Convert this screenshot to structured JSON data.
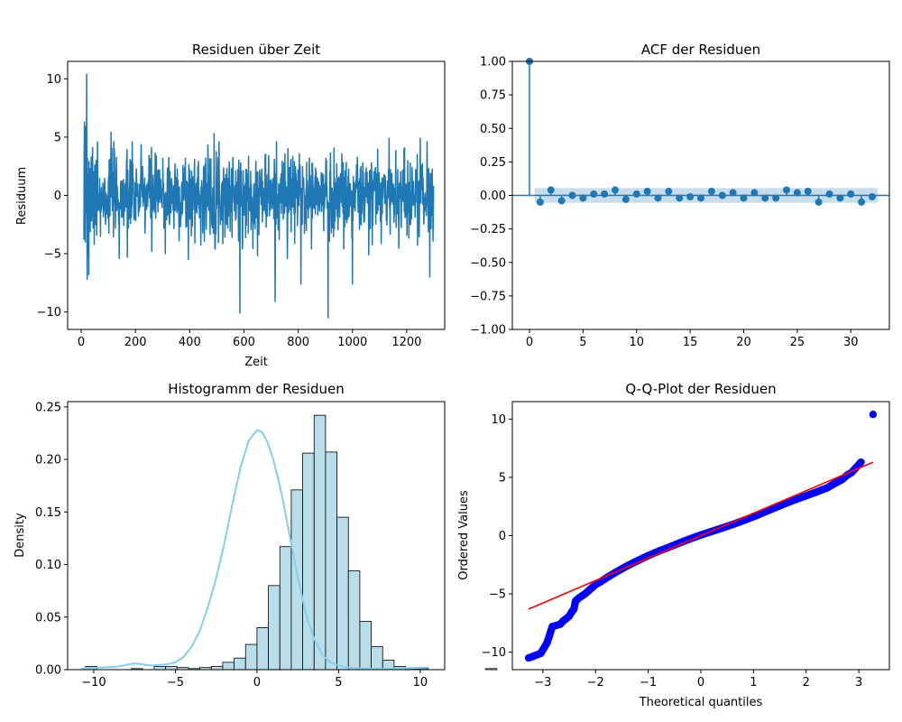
{
  "chart_data": [
    {
      "type": "line",
      "title": "Residuen über Zeit",
      "xlabel": "Zeit",
      "ylabel": "Residuum",
      "xlim": [
        -50,
        1340
      ],
      "ylim": [
        -11.5,
        11.5
      ],
      "xticks": [
        0,
        200,
        400,
        600,
        800,
        1000,
        1200
      ],
      "yticks": [
        -10,
        -5,
        0,
        5,
        10
      ],
      "color": "#1f77b4",
      "n_points": 1290,
      "x_start": 10,
      "series": [
        {
          "values": [
            -3.8,
            3.7,
            6.3,
            -2.1,
            1.1,
            -4.0,
            5.9,
            -1.5,
            2.4,
            -0.6,
            10.4,
            -1.8,
            -7.2,
            3.2,
            -2.6,
            0.5,
            -5.1,
            1.8,
            -6.8,
            2.9,
            -1.2,
            0.7,
            2.3,
            -3.1,
            0.4,
            1.6,
            -0.9,
            3.3,
            -2.2,
            0.8,
            -1.7,
            1.2,
            4.1,
            -0.5,
            -2.8,
            2.0,
            -0.3,
            1.5,
            -4.2,
            0.6,
            2.6,
            -1.1,
            0.2,
            -2.5,
            1.9,
            3.0,
            -0.8,
            -3.4,
            1.3,
            0.1
          ],
          "spikes": [
            {
              "x": 110,
              "y": 5.4
            },
            {
              "x": 140,
              "y": -5.4
            },
            {
              "x": 170,
              "y": -5.3
            },
            {
              "x": 260,
              "y": -4.8
            },
            {
              "x": 310,
              "y": -5.0
            },
            {
              "x": 395,
              "y": -5.5
            },
            {
              "x": 490,
              "y": 5.3
            },
            {
              "x": 585,
              "y": -10.1
            },
            {
              "x": 650,
              "y": -5.2
            },
            {
              "x": 715,
              "y": -9.1
            },
            {
              "x": 760,
              "y": -5.4
            },
            {
              "x": 810,
              "y": -7.6
            },
            {
              "x": 910,
              "y": -10.5
            },
            {
              "x": 1000,
              "y": -7.6
            },
            {
              "x": 1060,
              "y": -5.1
            },
            {
              "x": 1135,
              "y": 4.9
            },
            {
              "x": 1250,
              "y": 4.9
            },
            {
              "x": 1285,
              "y": -7.0
            }
          ]
        }
      ]
    },
    {
      "type": "stem",
      "title": "ACF der Residuen",
      "xlim": [
        -1.6,
        33.6
      ],
      "ylim": [
        -1.0,
        1.0
      ],
      "xticks": [
        0,
        5,
        10,
        15,
        20,
        25,
        30
      ],
      "yticks": [
        -1.0,
        -0.75,
        -0.5,
        -0.25,
        0.0,
        0.25,
        0.5,
        0.75,
        1.0
      ],
      "ytick_labels": [
        "−1.00",
        "−0.75",
        "−0.50",
        "−0.25",
        "0.00",
        "0.25",
        "0.50",
        "0.75",
        "1.00"
      ],
      "confidence_band": 0.055,
      "color": "#1f77b4",
      "lags": [
        0,
        1,
        2,
        3,
        4,
        5,
        6,
        7,
        8,
        9,
        10,
        11,
        12,
        13,
        14,
        15,
        16,
        17,
        18,
        19,
        20,
        21,
        22,
        23,
        24,
        25,
        26,
        27,
        28,
        29,
        30,
        31,
        32
      ],
      "values": [
        1.0,
        -0.05,
        0.04,
        -0.04,
        0.0,
        -0.02,
        0.01,
        0.01,
        0.04,
        -0.03,
        0.01,
        0.03,
        -0.02,
        0.03,
        -0.02,
        -0.01,
        -0.02,
        0.03,
        0.0,
        0.02,
        -0.02,
        0.02,
        -0.02,
        -0.02,
        0.04,
        0.02,
        0.03,
        -0.05,
        0.01,
        -0.02,
        0.01,
        -0.05,
        -0.01
      ]
    },
    {
      "type": "bar",
      "title": "Histogramm der Residuen",
      "xlabel": "",
      "ylabel": "Density",
      "xlim": [
        -11.6,
        11.5
      ],
      "ylim": [
        0,
        0.255
      ],
      "xticks": [
        -10,
        -5,
        0,
        5,
        10
      ],
      "yticks": [
        0.0,
        0.05,
        0.1,
        0.15,
        0.2,
        0.25
      ],
      "ytick_labels": [
        "0.00",
        "0.05",
        "0.10",
        "0.15",
        "0.20",
        "0.25"
      ],
      "bar_color": "#add8e6",
      "kde_color": "#87ceeb",
      "bin_start": -10.5,
      "bin_width": 0.7,
      "densities": [
        0.003,
        0.0,
        0.0,
        0.0,
        0.001,
        0.0,
        0.003,
        0.003,
        0.002,
        0.001,
        0.002,
        0.003,
        0.007,
        0.011,
        0.024,
        0.04,
        0.08,
        0.117,
        0.171,
        0.206,
        0.242,
        0.207,
        0.145,
        0.094,
        0.046,
        0.022,
        0.009,
        0.003,
        0.001,
        0.001,
        0.0,
        0.0,
        0.0,
        0.0,
        0.0,
        0.001
      ],
      "kde": {
        "x": [
          -10.8,
          -9.5,
          -8.5,
          -7.5,
          -6.5,
          -5.5,
          -5.0,
          -4.5,
          -4.0,
          -3.5,
          -3.0,
          -2.5,
          -2.0,
          -1.5,
          -1.0,
          -0.5,
          0.0,
          0.3,
          0.6,
          1.0,
          1.5,
          2.0,
          2.5,
          3.0,
          3.5,
          4.0,
          4.5,
          5.0,
          5.5,
          6.5,
          8.0,
          10.5
        ],
        "y": [
          0.001,
          0.002,
          0.003,
          0.006,
          0.004,
          0.005,
          0.007,
          0.012,
          0.022,
          0.037,
          0.06,
          0.087,
          0.12,
          0.158,
          0.193,
          0.218,
          0.228,
          0.226,
          0.218,
          0.2,
          0.168,
          0.128,
          0.088,
          0.053,
          0.029,
          0.014,
          0.007,
          0.004,
          0.002,
          0.001,
          0.001,
          0.002
        ]
      }
    },
    {
      "type": "scatter",
      "title": "Q-Q-Plot der Residuen",
      "xlabel": "Theoretical quantiles",
      "ylabel": "Ordered Values",
      "xlim": [
        -3.58,
        3.58
      ],
      "ylim": [
        -11.5,
        11.5
      ],
      "xticks": [
        -3,
        -2,
        -1,
        0,
        1,
        2,
        3
      ],
      "xtick_labels": [
        "−3",
        "−2",
        "−1",
        "0",
        "1",
        "2",
        "3"
      ],
      "yticks": [
        -10,
        -5,
        0,
        5,
        10
      ],
      "ytick_labels": [
        "−10",
        "−5",
        "0",
        "5",
        "10"
      ],
      "point_color": "#0000ff",
      "line_color": "#ff0000",
      "fit_line": {
        "x": [
          -3.27,
          3.27
        ],
        "y": [
          -6.3,
          6.3
        ]
      },
      "points": [
        [
          -3.27,
          -10.5
        ],
        [
          -3.04,
          -10.1
        ],
        [
          -2.92,
          -9.2
        ],
        [
          -2.82,
          -7.8
        ],
        [
          -2.74,
          -7.7
        ],
        [
          -2.67,
          -7.6
        ],
        [
          -2.61,
          -7.3
        ],
        [
          -2.55,
          -7.1
        ],
        [
          -2.5,
          -6.9
        ],
        [
          -2.46,
          -6.6
        ],
        [
          -2.41,
          -6.3
        ],
        [
          -2.38,
          -5.6
        ],
        [
          -2.3,
          -5.3
        ],
        [
          -2.2,
          -5.0
        ],
        [
          -2.1,
          -4.6
        ],
        [
          -2.0,
          -4.2
        ],
        [
          -1.9,
          -3.95
        ],
        [
          -1.8,
          -3.65
        ],
        [
          -1.6,
          -3.1
        ],
        [
          -1.4,
          -2.6
        ],
        [
          -1.2,
          -2.15
        ],
        [
          -1.0,
          -1.72
        ],
        [
          -0.8,
          -1.33
        ],
        [
          -0.6,
          -0.98
        ],
        [
          -0.4,
          -0.62
        ],
        [
          -0.2,
          -0.27
        ],
        [
          0.0,
          0.05
        ],
        [
          0.2,
          0.35
        ],
        [
          0.4,
          0.64
        ],
        [
          0.6,
          0.95
        ],
        [
          0.8,
          1.28
        ],
        [
          1.0,
          1.62
        ],
        [
          1.2,
          2.0
        ],
        [
          1.4,
          2.38
        ],
        [
          1.6,
          2.75
        ],
        [
          1.8,
          3.1
        ],
        [
          2.0,
          3.42
        ],
        [
          2.2,
          3.75
        ],
        [
          2.4,
          4.1
        ],
        [
          2.55,
          4.5
        ],
        [
          2.68,
          4.8
        ],
        [
          2.78,
          5.2
        ],
        [
          2.86,
          5.4
        ],
        [
          3.04,
          6.3
        ],
        [
          3.27,
          10.4
        ]
      ]
    }
  ]
}
